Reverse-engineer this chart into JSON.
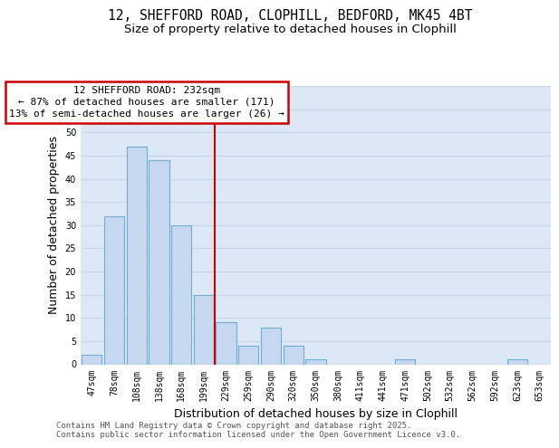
{
  "title_line1": "12, SHEFFORD ROAD, CLOPHILL, BEDFORD, MK45 4BT",
  "title_line2": "Size of property relative to detached houses in Clophill",
  "xlabel": "Distribution of detached houses by size in Clophill",
  "ylabel": "Number of detached properties",
  "bar_heights": [
    2,
    32,
    47,
    44,
    30,
    15,
    9,
    4,
    8,
    4,
    1,
    0,
    0,
    0,
    1,
    0,
    0,
    0,
    0,
    1,
    0
  ],
  "bin_labels": [
    "47sqm",
    "78sqm",
    "108sqm",
    "138sqm",
    "168sqm",
    "199sqm",
    "229sqm",
    "259sqm",
    "290sqm",
    "320sqm",
    "350sqm",
    "380sqm",
    "411sqm",
    "441sqm",
    "471sqm",
    "502sqm",
    "532sqm",
    "562sqm",
    "592sqm",
    "623sqm",
    "653sqm"
  ],
  "bar_color": "#c5d8f0",
  "bar_edge_color": "#6eadd4",
  "grid_color": "#c8d4e8",
  "bg_color": "#dce8f5",
  "property_line_x": 5.5,
  "annotation_text_line1": "12 SHEFFORD ROAD: 232sqm",
  "annotation_text_line2": "← 87% of detached houses are smaller (171)",
  "annotation_text_line3": "13% of semi-detached houses are larger (26) →",
  "annotation_box_color": "#ffffff",
  "annotation_border_color": "#cc0000",
  "vline_color": "#cc0000",
  "ylim": [
    0,
    60
  ],
  "yticks": [
    0,
    5,
    10,
    15,
    20,
    25,
    30,
    35,
    40,
    45,
    50,
    55,
    60
  ],
  "footer_text": "Contains HM Land Registry data © Crown copyright and database right 2025.\nContains public sector information licensed under the Open Government Licence v3.0.",
  "title_fontsize": 10.5,
  "subtitle_fontsize": 9.5,
  "axis_label_fontsize": 9,
  "tick_fontsize": 7,
  "footer_fontsize": 6.5,
  "ann_fontsize": 8
}
